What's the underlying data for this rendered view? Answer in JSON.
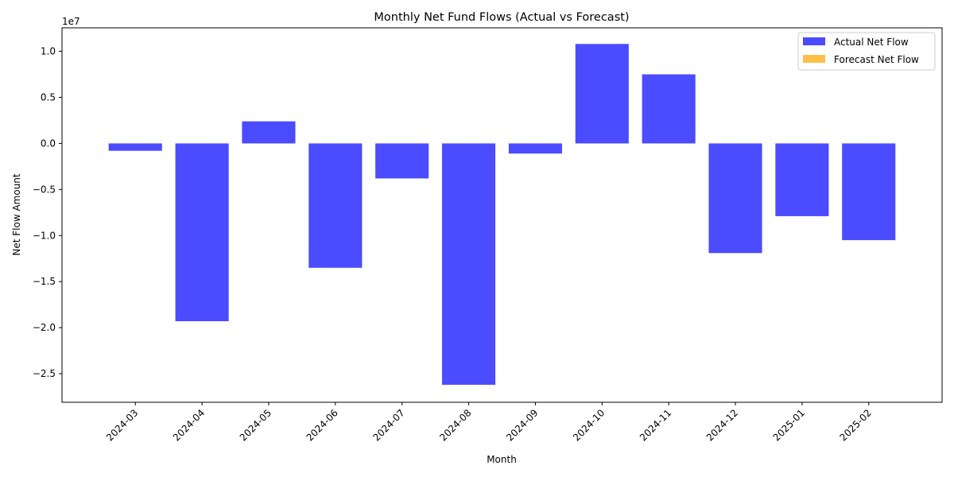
{
  "chart_data": {
    "type": "bar",
    "title": "Monthly Net Fund Flows (Actual vs Forecast)",
    "xlabel": "Month",
    "ylabel": "Net Flow Amount",
    "y_offset_label": "1e7",
    "categories": [
      "2024-03",
      "2024-04",
      "2024-05",
      "2024-06",
      "2024-07",
      "2024-08",
      "2024-09",
      "2024-10",
      "2024-11",
      "2024-12",
      "2025-01",
      "2025-02"
    ],
    "series": [
      {
        "name": "Actual Net Flow",
        "color": "#4b4bff",
        "values": [
          -800000,
          -19300000,
          2400000,
          -13500000,
          -3800000,
          -26200000,
          -1100000,
          10800000,
          7500000,
          -11900000,
          -7900000,
          -10500000
        ]
      },
      {
        "name": "Forecast Net Flow",
        "color": "#ffc04b",
        "values": [
          0,
          0,
          0,
          0,
          0,
          0,
          0,
          0,
          0,
          0,
          0,
          0
        ]
      }
    ],
    "ylim": [
      -28100000,
      12550000
    ],
    "yticks": [
      1.0,
      0.5,
      0.0,
      -0.5,
      -1.0,
      -1.5,
      -2.0,
      -2.5
    ],
    "ytick_labels": [
      "1.0",
      "0.5",
      "0.0",
      "−0.5",
      "−1.0",
      "−1.5",
      "−2.0",
      "−2.5"
    ],
    "ytick_scale": 10000000,
    "grid": false,
    "legend_position": "top-right"
  }
}
